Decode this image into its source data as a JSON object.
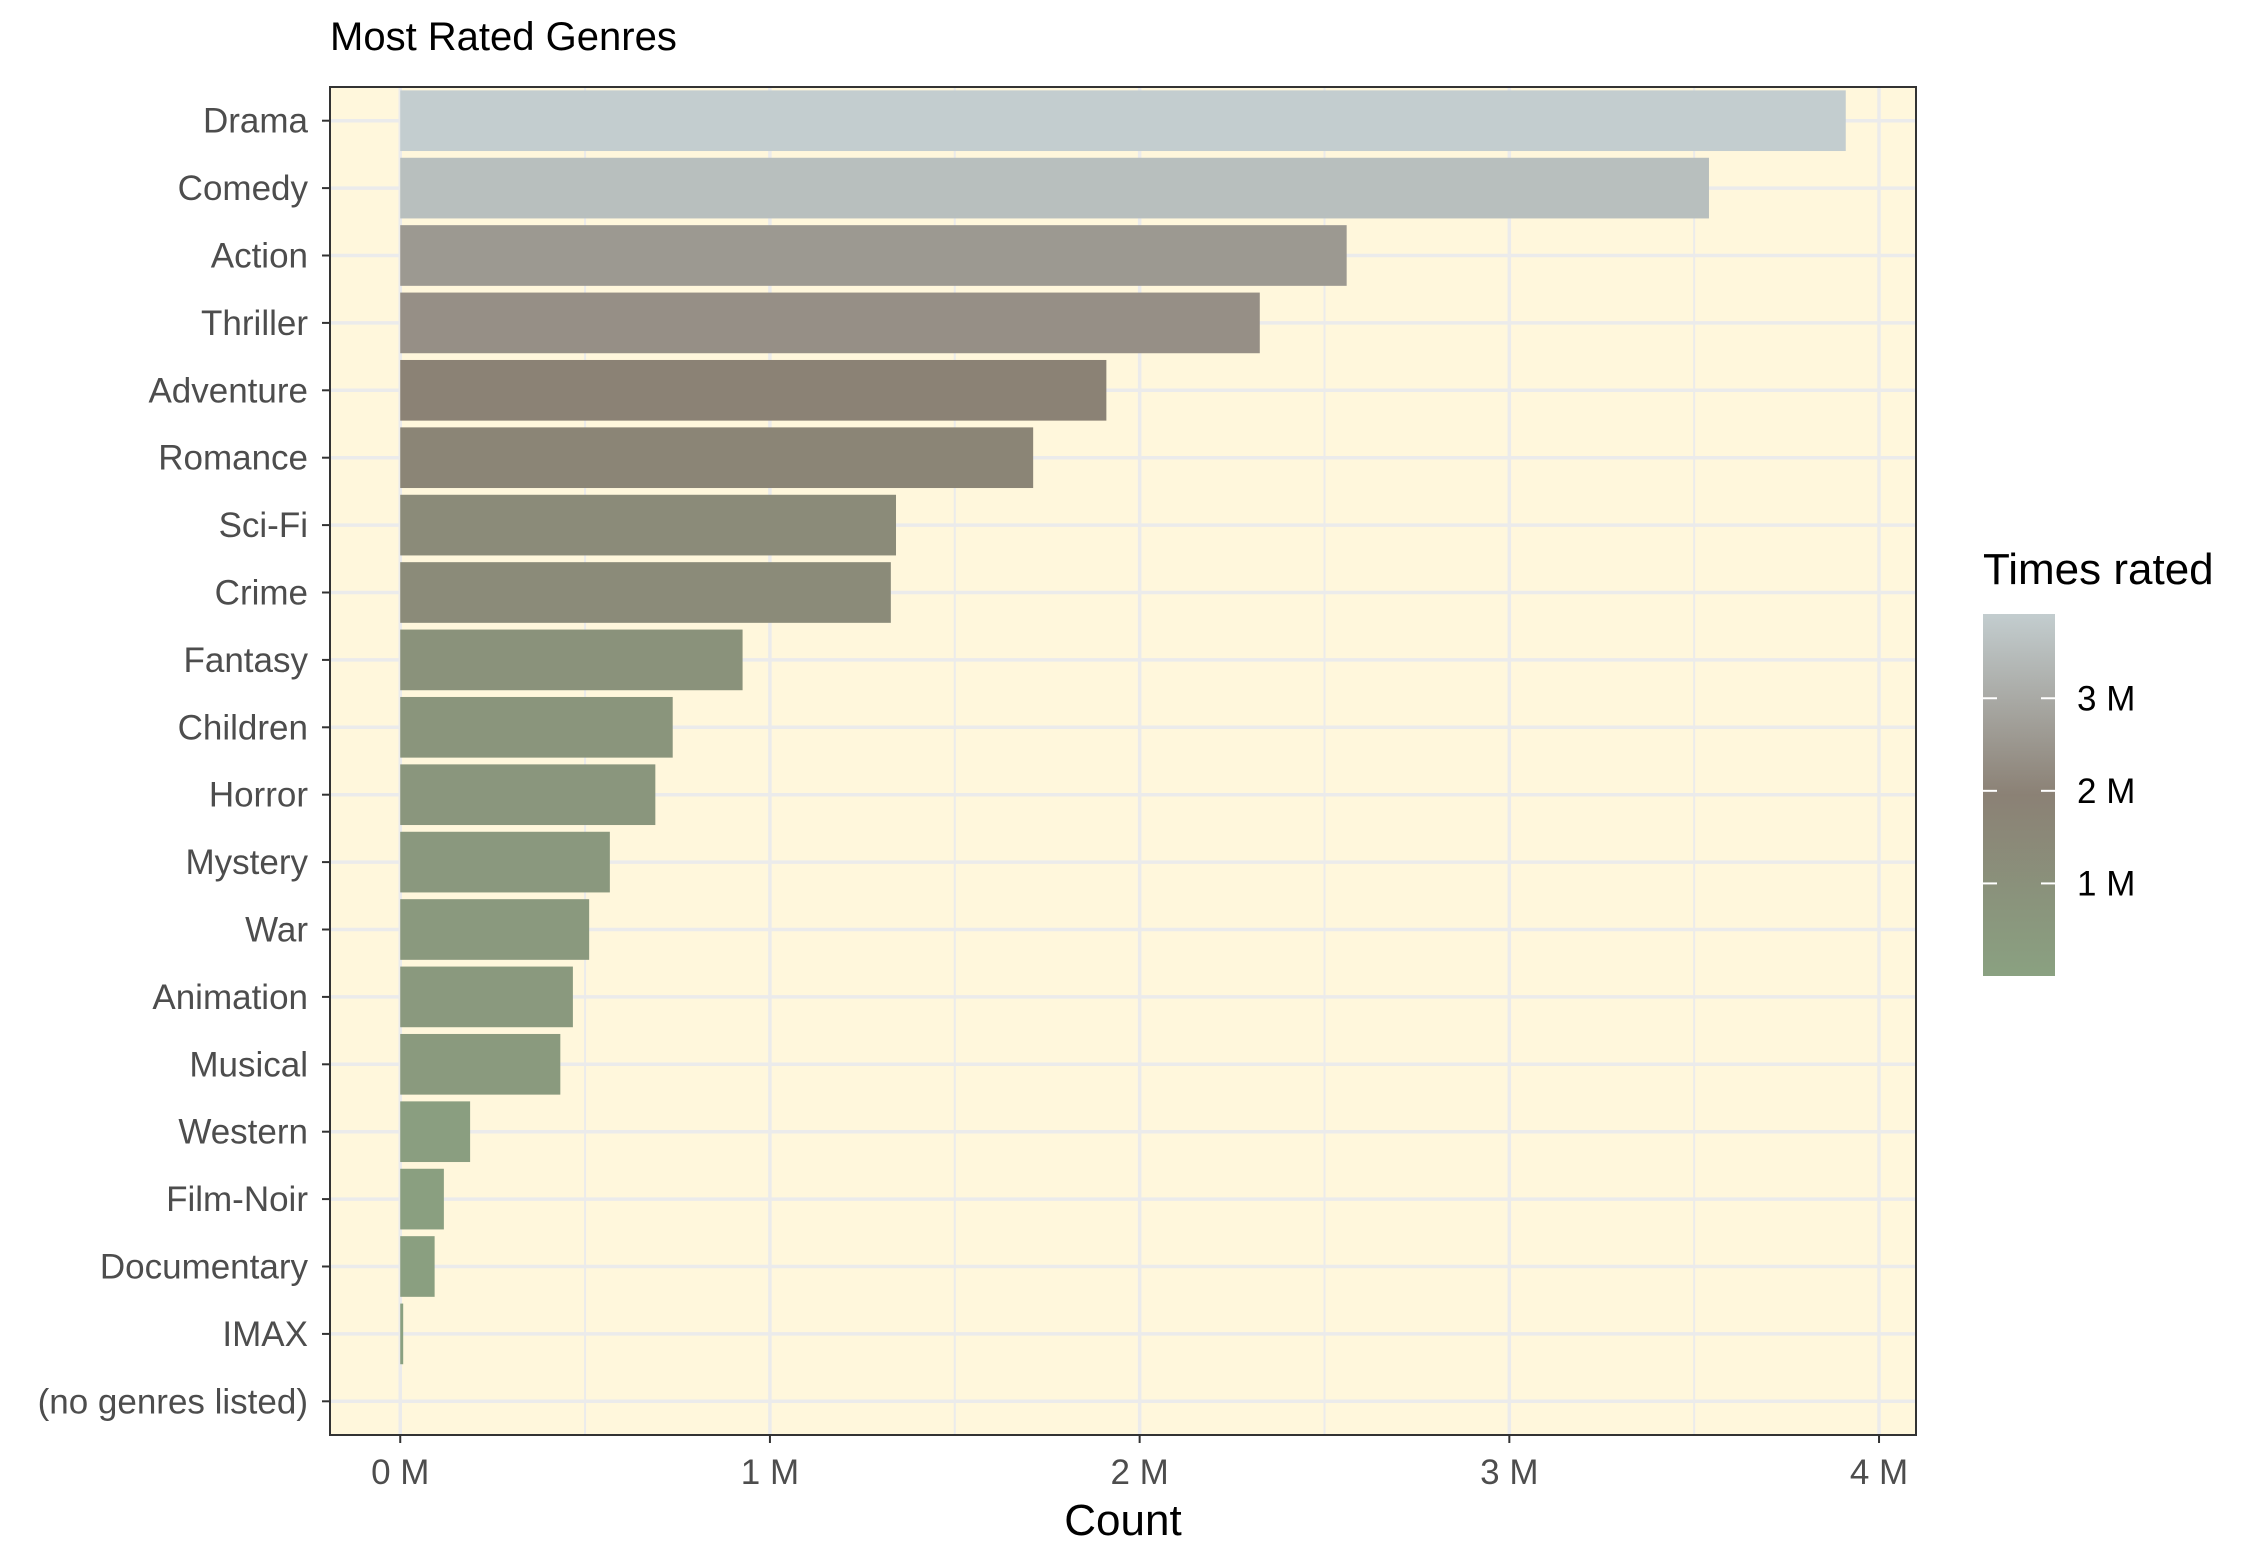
{
  "chart_data": {
    "type": "bar",
    "orientation": "horizontal",
    "title": "Most Rated Genres",
    "xlabel": "Count",
    "ylabel": "",
    "xlim": [
      -190000,
      4100000
    ],
    "x_ticks": [
      0,
      1000000,
      2000000,
      3000000,
      4000000
    ],
    "x_tick_labels": [
      "0 M",
      "1 M",
      "2 M",
      "3 M",
      "4 M"
    ],
    "grid": true,
    "legend_position": "right",
    "categories": [
      "Drama",
      "Comedy",
      "Action",
      "Thriller",
      "Adventure",
      "Romance",
      "Sci-Fi",
      "Crime",
      "Fantasy",
      "Children",
      "Horror",
      "Mystery",
      "War",
      "Animation",
      "Musical",
      "Western",
      "Film-Noir",
      "Documentary",
      "IMAX",
      "(no genres listed)"
    ],
    "values": [
      3910000,
      3540000,
      2560000,
      2325000,
      1910000,
      1712000,
      1341000,
      1327000,
      926000,
      737000,
      690000,
      567000,
      511000,
      467000,
      433000,
      189000,
      118000,
      93000,
      8000,
      7
    ],
    "legend": {
      "title": "Times rated",
      "ticks": [
        1000000,
        2000000,
        3000000
      ],
      "tick_labels": [
        "1 M",
        "2 M",
        "3 M"
      ],
      "range": [
        7,
        3910000
      ]
    },
    "colors": {
      "panel_background": "#fff7dc",
      "grid": "#ebebeb",
      "gradient_low": "#8aa181",
      "gradient_mid": "#8b8175",
      "gradient_high": "#c3cdcf",
      "axis_text": "#4d4d4d",
      "title_text": "#000000"
    }
  }
}
